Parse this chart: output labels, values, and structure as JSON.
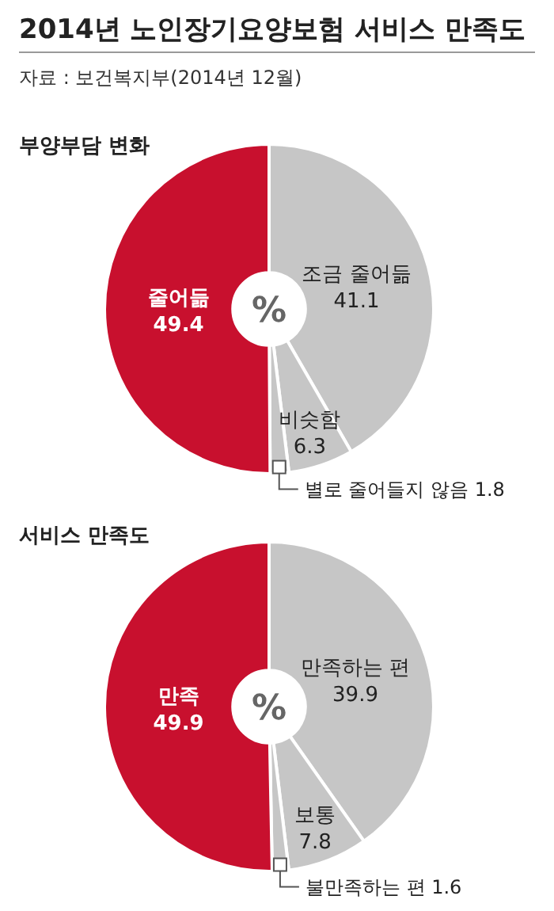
{
  "chart_data": [
    {
      "type": "donut",
      "title": "2014년 노인장기요양보험 서비스 만족도",
      "subtitle": "부양부담 변화",
      "annotations": [
        "자료 : 보건복지부(2014년 12월)",
        "%"
      ],
      "categories": [
        "조금 줄어듦",
        "비슷함",
        "별로 줄어들지 않음",
        "줄어듦"
      ],
      "values": [
        41.1,
        6.3,
        1.8,
        49.4
      ],
      "colors": [
        "#c6c6c6",
        "#c6c6c6",
        "#c6c6c6",
        "#c8102e"
      ],
      "data_labels": true
    },
    {
      "type": "donut",
      "title": "서비스 만족도",
      "annotations": [
        "%"
      ],
      "categories": [
        "만족하는 편",
        "보통",
        "불만족하는 편",
        "만족"
      ],
      "values": [
        39.9,
        7.8,
        1.6,
        49.9
      ],
      "colors": [
        "#c6c6c6",
        "#c6c6c6",
        "#c6c6c6",
        "#c8102e"
      ],
      "data_labels": true
    }
  ]
}
